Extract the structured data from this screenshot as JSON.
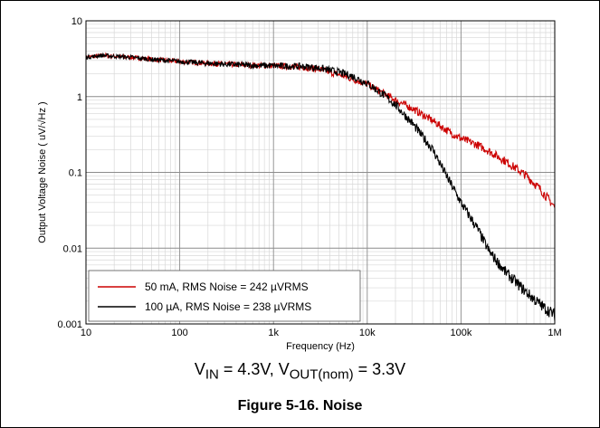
{
  "chart_data": {
    "type": "line",
    "xscale": "log",
    "yscale": "log",
    "xlim": [
      10,
      1000000
    ],
    "ylim": [
      0.001,
      10
    ],
    "grid": true,
    "legend_position": "bottom-left",
    "xlabel": "Frequency (Hz)",
    "ylabel": "Output Voltage Noise ( uV/√Hz )",
    "x_tick_labels": [
      "10",
      "100",
      "1k",
      "10k",
      "100k",
      "1M"
    ],
    "y_tick_labels": [
      "10",
      "1",
      "0.1",
      "0.01",
      "0.001"
    ],
    "series": [
      {
        "name": "50 mA, RMS Noise = 242 µVRMS",
        "color": "#cc0000",
        "points": [
          [
            10,
            3.3
          ],
          [
            15,
            3.5
          ],
          [
            20,
            3.4
          ],
          [
            30,
            3.3
          ],
          [
            50,
            3.1
          ],
          [
            100,
            2.9
          ],
          [
            200,
            2.75
          ],
          [
            500,
            2.6
          ],
          [
            1000,
            2.55
          ],
          [
            2000,
            2.45
          ],
          [
            3000,
            2.3
          ],
          [
            5000,
            1.95
          ],
          [
            7000,
            1.7
          ],
          [
            10000,
            1.45
          ],
          [
            15000,
            1.1
          ],
          [
            20000,
            0.9
          ],
          [
            30000,
            0.7
          ],
          [
            50000,
            0.48
          ],
          [
            70000,
            0.36
          ],
          [
            100000,
            0.28
          ],
          [
            150000,
            0.23
          ],
          [
            200000,
            0.19
          ],
          [
            300000,
            0.14
          ],
          [
            500000,
            0.09
          ],
          [
            700000,
            0.06
          ],
          [
            1000000,
            0.035
          ]
        ]
      },
      {
        "name": "100  µA, RMS Noise = 238 µVRMS",
        "color": "#000000",
        "points": [
          [
            10,
            3.3
          ],
          [
            15,
            3.5
          ],
          [
            20,
            3.4
          ],
          [
            30,
            3.3
          ],
          [
            50,
            3.1
          ],
          [
            100,
            2.9
          ],
          [
            200,
            2.75
          ],
          [
            500,
            2.6
          ],
          [
            1000,
            2.55
          ],
          [
            2000,
            2.5
          ],
          [
            3000,
            2.4
          ],
          [
            5000,
            2.1
          ],
          [
            7000,
            1.85
          ],
          [
            10000,
            1.5
          ],
          [
            15000,
            1.05
          ],
          [
            20000,
            0.78
          ],
          [
            30000,
            0.45
          ],
          [
            50000,
            0.2
          ],
          [
            70000,
            0.09
          ],
          [
            100000,
            0.04
          ],
          [
            150000,
            0.018
          ],
          [
            200000,
            0.009
          ],
          [
            300000,
            0.0048
          ],
          [
            500000,
            0.0026
          ],
          [
            700000,
            0.0018
          ],
          [
            1000000,
            0.0013
          ]
        ]
      }
    ]
  },
  "condition": {
    "vin_main": "V",
    "vin_sub": "IN",
    "vin_value": " = 4.3V, ",
    "vout_main": "V",
    "vout_sub": "OUT(nom)",
    "vout_value": " = 3.3V"
  },
  "caption": "Figure 5-16. Noise"
}
